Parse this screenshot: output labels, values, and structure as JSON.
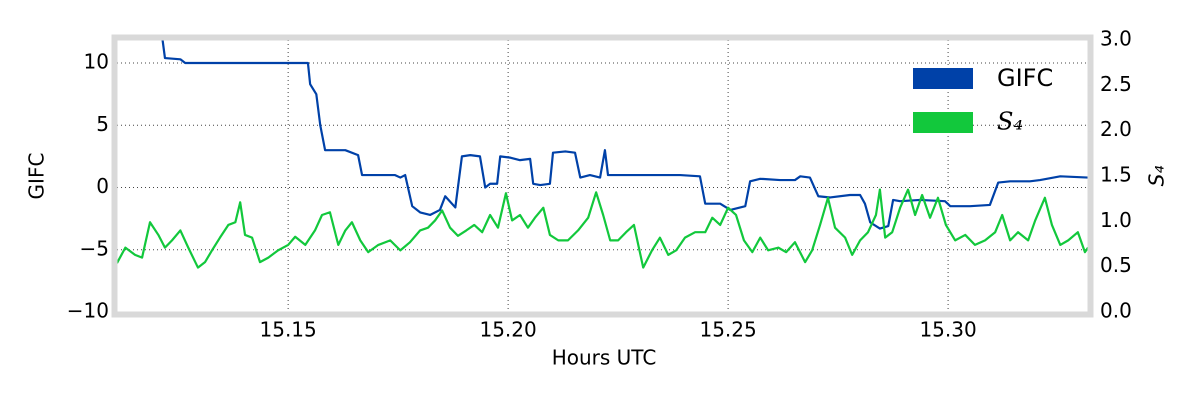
{
  "chart_data": {
    "type": "line",
    "xlabel": "Hours UTC",
    "ylabel": "GIFC",
    "y2label": "S₄",
    "xlim": [
      15.1111,
      15.3318
    ],
    "xticks": [
      15.15,
      {
        "value": 15.2,
        "label": "15.20"
      },
      15.25,
      {
        "value": 15.3,
        "label": "15.30"
      }
    ],
    "ylim": [
      -10,
      11.85
    ],
    "yticks": [
      {
        "value": -10,
        "label": "−10"
      },
      {
        "value": -5,
        "label": "−5"
      },
      0,
      5,
      10
    ],
    "y2lim": [
      0,
      3
    ],
    "y2ticks": [
      {
        "value": 0,
        "label": "0.0"
      },
      0.5,
      {
        "value": 1,
        "label": "1.0"
      },
      1.5,
      {
        "value": 2,
        "label": "2.0"
      },
      2.5,
      {
        "value": 3,
        "label": "3.0"
      }
    ],
    "grid": true,
    "legend": "upper right",
    "series": [
      {
        "name": "GIFC",
        "color": "#0041a8",
        "x": [
          15.1214,
          15.122,
          15.1255,
          15.1266,
          15.1527,
          15.1545,
          15.155,
          15.1564,
          15.1573,
          15.1584,
          15.1595,
          15.163,
          15.1659,
          15.1668,
          15.1743,
          15.1755,
          15.1766,
          15.1782,
          15.18,
          15.1823,
          15.1845,
          15.1857,
          15.188,
          15.1895,
          15.1914,
          15.1936,
          15.1948,
          15.1959,
          15.1975,
          15.1982,
          15.2005,
          15.2027,
          15.205,
          15.2057,
          15.2073,
          15.2095,
          15.2102,
          15.213,
          15.2152,
          15.2164,
          15.2186,
          15.2209,
          15.222,
          15.2227,
          15.2255,
          15.2323,
          15.2391,
          15.2436,
          15.2448,
          15.2482,
          15.2505,
          15.2539,
          15.255,
          15.2573,
          15.2618,
          15.2652,
          15.2664,
          15.2686,
          15.2705,
          15.2732,
          15.2777,
          15.28,
          15.2811,
          15.2823,
          15.2845,
          15.2864,
          15.2875,
          15.2891,
          15.2936,
          15.2993,
          15.3005,
          15.305,
          15.3095,
          15.3114,
          15.3141,
          15.3186,
          15.3209,
          15.3255,
          15.3318
        ],
        "values": [
          12,
          10.4,
          10.3,
          10.0,
          10.0,
          10.0,
          8.3,
          7.5,
          5,
          3,
          3,
          3,
          2.6,
          1.0,
          1.0,
          0.8,
          1.0,
          -1.5,
          -2.0,
          -2.2,
          -1.8,
          -0.7,
          -1.6,
          2.5,
          2.6,
          2.5,
          0,
          0.3,
          0.3,
          2.5,
          2.4,
          2.2,
          2.3,
          0.3,
          0.2,
          0.3,
          2.8,
          2.9,
          2.8,
          0.8,
          1.0,
          0.8,
          3.0,
          1.0,
          1.0,
          1.0,
          1.0,
          0.9,
          -1.3,
          -1.3,
          -1.8,
          -1.5,
          0.5,
          0.7,
          0.6,
          0.6,
          0.9,
          0.8,
          -0.7,
          -0.8,
          -0.6,
          -0.6,
          -1.3,
          -2.8,
          -3.3,
          -3.1,
          -1.0,
          -1.1,
          -1.0,
          -1.1,
          -1.5,
          -1.5,
          -1.4,
          0.4,
          0.5,
          0.5,
          0.6,
          0.9,
          0.8
        ]
      },
      {
        "name": "S₄",
        "color": "#12c83c",
        "axis": "y2",
        "x": [
          15.1111,
          15.113,
          15.1152,
          15.1168,
          15.1186,
          15.1205,
          15.122,
          15.1236,
          15.1255,
          15.1273,
          15.1295,
          15.1311,
          15.1327,
          15.1345,
          15.1364,
          15.138,
          15.1391,
          15.1402,
          15.1418,
          15.1436,
          15.1455,
          15.1477,
          15.15,
          15.1516,
          15.1539,
          15.1561,
          15.1577,
          15.1595,
          15.1614,
          15.163,
          15.1645,
          15.1664,
          15.1682,
          15.1705,
          15.1732,
          15.1755,
          15.1777,
          15.18,
          15.1818,
          15.1834,
          15.185,
          15.1868,
          15.1886,
          15.1905,
          15.1923,
          15.1941,
          15.1959,
          15.1977,
          15.1995,
          15.2009,
          15.2027,
          15.2045,
          15.2061,
          15.208,
          15.2095,
          15.2114,
          15.2136,
          15.2159,
          15.2182,
          15.22,
          15.2216,
          15.2232,
          15.225,
          15.2268,
          15.2286,
          15.2307,
          15.2327,
          15.2345,
          15.2364,
          15.2382,
          15.2402,
          15.2425,
          15.2448,
          15.2464,
          15.2482,
          15.25,
          15.2518,
          15.2536,
          15.2555,
          15.2573,
          15.2591,
          15.2614,
          15.2632,
          15.2652,
          15.2675,
          15.2691,
          15.2709,
          15.2727,
          15.2743,
          15.2766,
          15.2782,
          15.28,
          15.2818,
          15.2836,
          15.2845,
          15.2857,
          15.2873,
          15.2891,
          15.2909,
          15.2925,
          15.2941,
          15.2959,
          15.2977,
          15.2995,
          15.3016,
          15.3039,
          15.3061,
          15.3084,
          15.3107,
          15.3123,
          15.3141,
          15.3159,
          15.3182,
          15.3198,
          15.322,
          15.3236,
          15.3255,
          15.3273,
          15.3295,
          15.3311,
          15.3318
        ],
        "values": [
          0.54,
          0.71,
          0.63,
          0.6,
          0.99,
          0.85,
          0.71,
          0.79,
          0.9,
          0.71,
          0.49,
          0.55,
          0.68,
          0.82,
          0.96,
          0.99,
          1.21,
          0.85,
          0.82,
          0.55,
          0.6,
          0.68,
          0.74,
          0.83,
          0.74,
          0.9,
          1.07,
          1.1,
          0.74,
          0.9,
          0.99,
          0.79,
          0.66,
          0.74,
          0.79,
          0.68,
          0.77,
          0.9,
          0.93,
          1.01,
          1.12,
          0.93,
          0.84,
          0.9,
          0.96,
          0.88,
          1.07,
          0.93,
          1.31,
          1.01,
          1.07,
          0.93,
          1.04,
          1.15,
          0.85,
          0.79,
          0.79,
          0.9,
          1.04,
          1.32,
          1.07,
          0.79,
          0.79,
          0.88,
          0.96,
          0.49,
          0.68,
          0.82,
          0.63,
          0.68,
          0.82,
          0.88,
          0.88,
          1.04,
          0.96,
          1.15,
          1.07,
          0.79,
          0.66,
          0.82,
          0.68,
          0.71,
          0.66,
          0.77,
          0.55,
          0.68,
          0.96,
          1.26,
          0.93,
          0.82,
          0.63,
          0.79,
          0.88,
          1.07,
          1.35,
          0.82,
          0.88,
          1.15,
          1.35,
          1.07,
          1.29,
          1.04,
          1.26,
          0.96,
          0.79,
          0.85,
          0.74,
          0.79,
          0.88,
          1.07,
          0.79,
          0.88,
          0.79,
          1.01,
          1.26,
          0.96,
          0.74,
          0.79,
          0.88,
          0.66,
          0.71
        ]
      }
    ]
  }
}
